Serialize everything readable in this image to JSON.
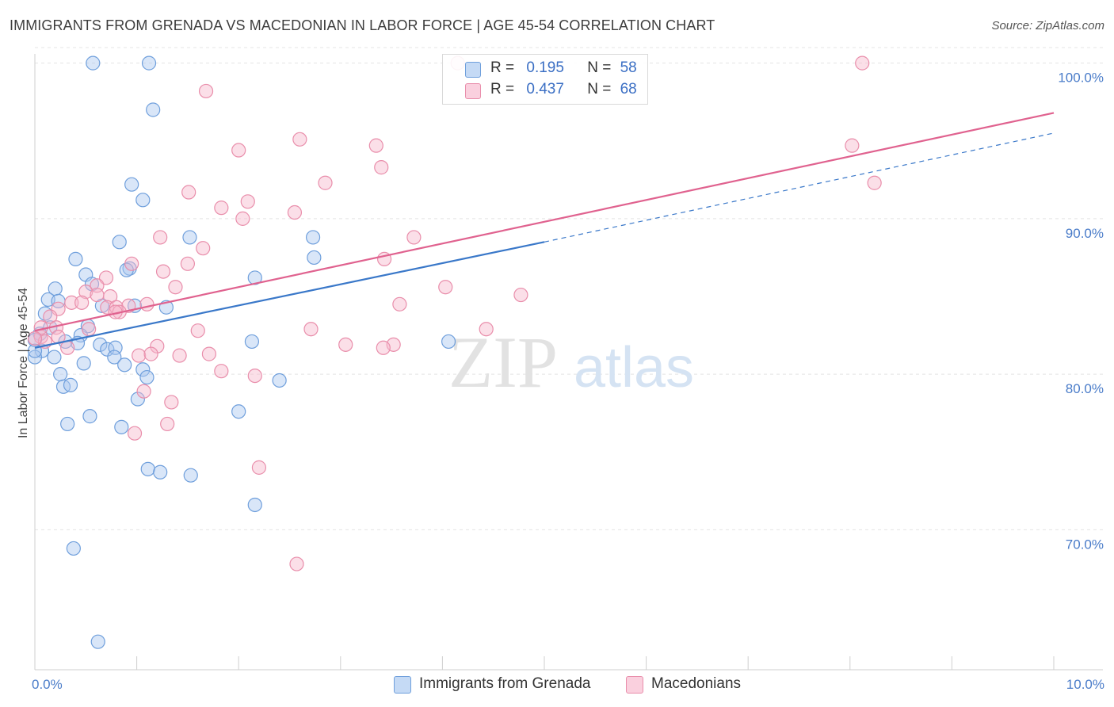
{
  "title": "IMMIGRANTS FROM GRENADA VS MACEDONIAN IN LABOR FORCE | AGE 45-54 CORRELATION CHART",
  "source": "Source: ZipAtlas.com",
  "watermark": {
    "zip": "ZIP",
    "atlas": "atlas"
  },
  "legend": {
    "r_label": "R =",
    "n_label": "N =",
    "rows": [
      {
        "r": "0.195",
        "n": "58"
      },
      {
        "r": "0.437",
        "n": "68"
      }
    ]
  },
  "colors": {
    "blue_fill": "#aac8f0",
    "blue_stroke": "#6f9fdc",
    "blue_line": "#3a78c9",
    "pink_fill": "#f7b9cd",
    "pink_stroke": "#e98eab",
    "pink_line": "#e0628f",
    "tick_text": "#4a7cc9",
    "grid": "#e4e4e4"
  },
  "chart_data": {
    "type": "scatter",
    "title": "IMMIGRANTS FROM GRENADA VS MACEDONIAN IN LABOR FORCE | AGE 45-54 CORRELATION CHART",
    "xlabel": "",
    "ylabel": "In Labor Force | Age 45-54",
    "xlim": [
      0,
      10
    ],
    "ylim": [
      61,
      101
    ],
    "x_tick_labels": [
      {
        "value": 0,
        "label": "0.0%"
      },
      {
        "value": 10,
        "label": "10.0%"
      }
    ],
    "y_tick_labels": [
      {
        "value": 70,
        "label": "70.0%"
      },
      {
        "value": 80,
        "label": "80.0%"
      },
      {
        "value": 90,
        "label": "90.0%"
      },
      {
        "value": 100,
        "label": "100.0%"
      }
    ],
    "grid": true,
    "legend_position": "top-center",
    "series": [
      {
        "name": "Immigrants from Grenada",
        "color": "#aac8f0",
        "trend": {
          "x": [
            0.0,
            5.0
          ],
          "y": [
            81.7,
            88.5
          ],
          "dashed_extension": {
            "x": [
              5.0,
              10.0
            ],
            "y": [
              88.5,
              95.5
            ]
          }
        },
        "points": [
          [
            0.57,
            100.0
          ],
          [
            1.12,
            100.0
          ],
          [
            1.16,
            97.0
          ],
          [
            0.95,
            92.2
          ],
          [
            1.06,
            91.2
          ],
          [
            0.83,
            88.5
          ],
          [
            1.52,
            88.8
          ],
          [
            2.73,
            88.8
          ],
          [
            2.74,
            87.5
          ],
          [
            0.4,
            87.4
          ],
          [
            0.93,
            86.8
          ],
          [
            0.5,
            86.4
          ],
          [
            0.56,
            85.8
          ],
          [
            0.9,
            86.7
          ],
          [
            2.16,
            86.2
          ],
          [
            0.2,
            85.5
          ],
          [
            0.13,
            84.8
          ],
          [
            0.23,
            84.7
          ],
          [
            0.66,
            84.4
          ],
          [
            0.98,
            84.4
          ],
          [
            1.29,
            84.3
          ],
          [
            0.1,
            83.9
          ],
          [
            0.15,
            83.0
          ],
          [
            0.52,
            83.1
          ],
          [
            0.45,
            82.5
          ],
          [
            0.05,
            82.6
          ],
          [
            0.42,
            82.0
          ],
          [
            0.64,
            81.9
          ],
          [
            0.3,
            82.1
          ],
          [
            2.13,
            82.1
          ],
          [
            4.06,
            82.1
          ],
          [
            0.71,
            81.6
          ],
          [
            0.79,
            81.7
          ],
          [
            0.0,
            82.2
          ],
          [
            0.07,
            81.5
          ],
          [
            0.0,
            81.1
          ],
          [
            0.19,
            81.1
          ],
          [
            0.78,
            81.1
          ],
          [
            0.48,
            80.7
          ],
          [
            0.88,
            80.6
          ],
          [
            1.06,
            80.3
          ],
          [
            1.1,
            79.8
          ],
          [
            2.4,
            79.6
          ],
          [
            0.25,
            80.0
          ],
          [
            0.28,
            79.2
          ],
          [
            0.35,
            79.3
          ],
          [
            1.01,
            78.4
          ],
          [
            2.0,
            77.6
          ],
          [
            0.54,
            77.3
          ],
          [
            0.32,
            76.8
          ],
          [
            0.85,
            76.6
          ],
          [
            1.11,
            73.9
          ],
          [
            1.23,
            73.7
          ],
          [
            1.53,
            73.5
          ],
          [
            2.16,
            71.6
          ],
          [
            0.38,
            68.8
          ],
          [
            0.62,
            62.8
          ],
          [
            0.0,
            81.5
          ]
        ]
      },
      {
        "name": "Macedonians",
        "color": "#f7b9cd",
        "trend": {
          "x": [
            0.0,
            10.0
          ],
          "y": [
            82.8,
            96.8
          ]
        },
        "points": [
          [
            4.15,
            100.0
          ],
          [
            8.12,
            100.0
          ],
          [
            1.68,
            98.2
          ],
          [
            2.6,
            95.1
          ],
          [
            3.35,
            94.7
          ],
          [
            8.02,
            94.7
          ],
          [
            2.0,
            94.4
          ],
          [
            3.4,
            93.3
          ],
          [
            2.85,
            92.3
          ],
          [
            8.24,
            92.3
          ],
          [
            1.51,
            91.7
          ],
          [
            2.09,
            91.1
          ],
          [
            1.83,
            90.7
          ],
          [
            2.55,
            90.4
          ],
          [
            2.04,
            90.0
          ],
          [
            1.23,
            88.8
          ],
          [
            3.72,
            88.8
          ],
          [
            1.65,
            88.1
          ],
          [
            3.43,
            87.4
          ],
          [
            0.95,
            87.1
          ],
          [
            1.5,
            87.1
          ],
          [
            1.26,
            86.6
          ],
          [
            0.7,
            86.2
          ],
          [
            0.61,
            85.7
          ],
          [
            1.38,
            85.6
          ],
          [
            4.03,
            85.6
          ],
          [
            0.5,
            85.3
          ],
          [
            0.74,
            85.0
          ],
          [
            0.61,
            85.1
          ],
          [
            4.77,
            85.1
          ],
          [
            0.36,
            84.6
          ],
          [
            0.46,
            84.6
          ],
          [
            0.71,
            84.3
          ],
          [
            0.8,
            84.3
          ],
          [
            0.92,
            84.4
          ],
          [
            0.83,
            84.0
          ],
          [
            1.1,
            84.5
          ],
          [
            3.58,
            84.5
          ],
          [
            0.23,
            84.2
          ],
          [
            0.15,
            83.7
          ],
          [
            0.79,
            84.0
          ],
          [
            0.21,
            83.0
          ],
          [
            0.53,
            82.9
          ],
          [
            1.6,
            82.8
          ],
          [
            2.71,
            82.9
          ],
          [
            4.43,
            82.9
          ],
          [
            0.06,
            82.4
          ],
          [
            0.23,
            82.4
          ],
          [
            0.1,
            82.1
          ],
          [
            3.05,
            81.9
          ],
          [
            3.52,
            81.9
          ],
          [
            3.42,
            81.7
          ],
          [
            1.2,
            81.8
          ],
          [
            0.32,
            81.7
          ],
          [
            1.02,
            81.2
          ],
          [
            1.14,
            81.3
          ],
          [
            1.42,
            81.2
          ],
          [
            1.71,
            81.3
          ],
          [
            1.83,
            80.2
          ],
          [
            2.16,
            79.9
          ],
          [
            1.07,
            78.9
          ],
          [
            1.34,
            78.2
          ],
          [
            1.3,
            76.8
          ],
          [
            0.98,
            76.2
          ],
          [
            2.2,
            74.0
          ],
          [
            2.57,
            67.8
          ],
          [
            0.06,
            83.0
          ],
          [
            0.0,
            82.3
          ]
        ]
      }
    ]
  }
}
